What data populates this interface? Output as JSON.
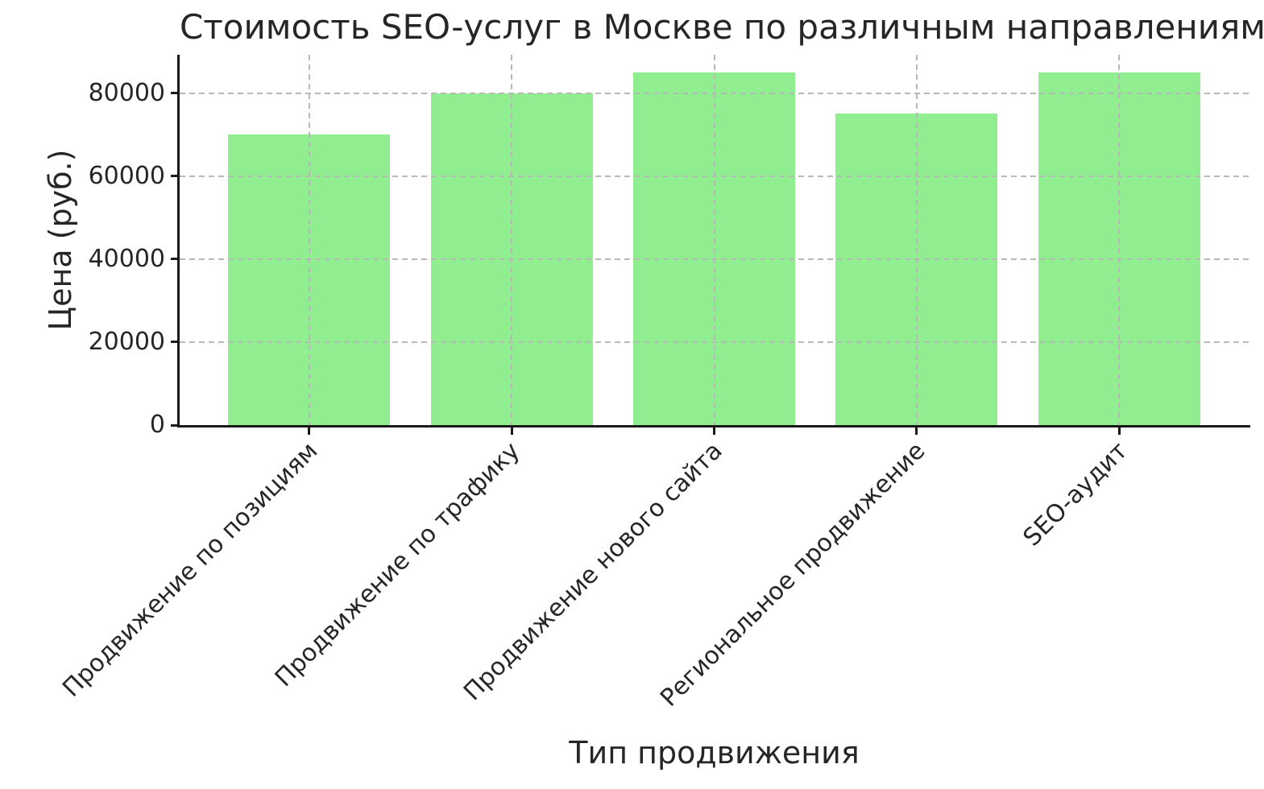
{
  "chart_data": {
    "type": "bar",
    "title": "Стоимость SEO-услуг в Москве по различным направлениям",
    "xlabel": "Тип продвижения",
    "ylabel": "Цена (руб.)",
    "categories": [
      "Продвижение по позициям",
      "Продвижение по трафику",
      "Продвижение нового сайта",
      "Региональное продвижение",
      "SEO-аудит"
    ],
    "values": [
      70000,
      80000,
      85000,
      75000,
      85000
    ],
    "yticks": [
      0,
      20000,
      40000,
      60000,
      80000
    ],
    "ylim": [
      0,
      89250
    ],
    "bar_color": "#90EE90",
    "grid": true,
    "grid_style": "dashed",
    "grid_color": "#b8b8b8",
    "tick_label_rotation": 45,
    "legend_position": "none"
  }
}
